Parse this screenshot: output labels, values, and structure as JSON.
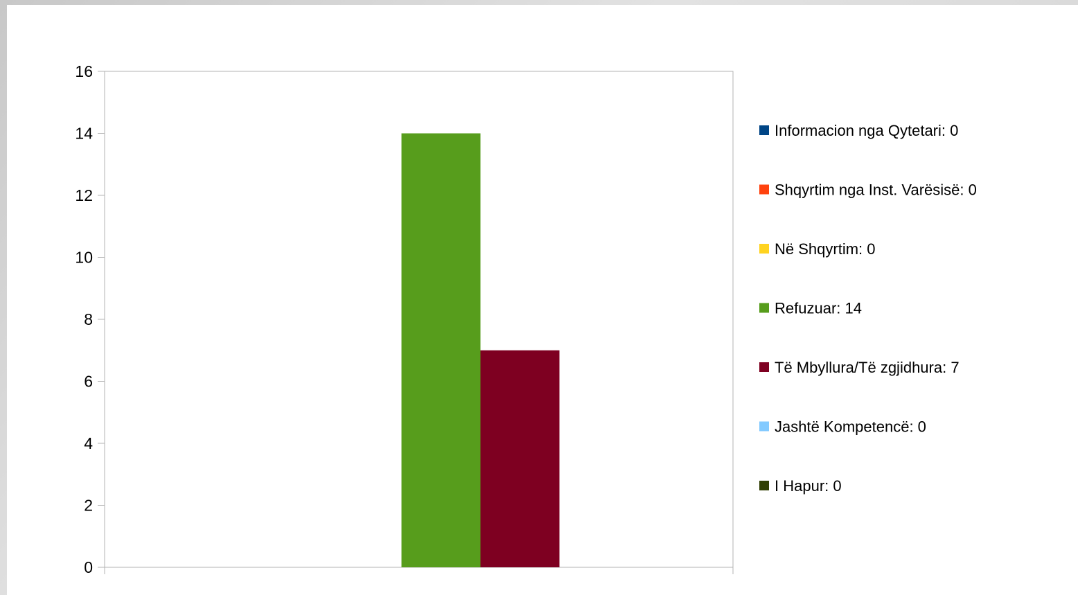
{
  "chart_data": {
    "type": "bar",
    "categories": [
      ""
    ],
    "ylim": [
      0,
      16
    ],
    "yticks": [
      0,
      2,
      4,
      6,
      8,
      10,
      12,
      14,
      16
    ],
    "grid": false,
    "legend_position": "right",
    "series": [
      {
        "name": "Informacion nga Qytetari: 0",
        "values": [
          0
        ],
        "color": "#004586"
      },
      {
        "name": "Shqyrtim nga Inst. Varësisë: 0",
        "values": [
          0
        ],
        "color": "#ff420e"
      },
      {
        "name": "Në Shqyrtim: 0",
        "values": [
          0
        ],
        "color": "#ffd320"
      },
      {
        "name": "Refuzuar: 14",
        "values": [
          14
        ],
        "color": "#579d1c"
      },
      {
        "name": "Të Mbyllura/Të zgjidhura: 7",
        "values": [
          7
        ],
        "color": "#7e0021"
      },
      {
        "name": "Jashtë Kompetencë: 0",
        "values": [
          0
        ],
        "color": "#83caff"
      },
      {
        "name": "I Hapur: 0",
        "values": [
          0
        ],
        "color": "#314004"
      }
    ]
  }
}
